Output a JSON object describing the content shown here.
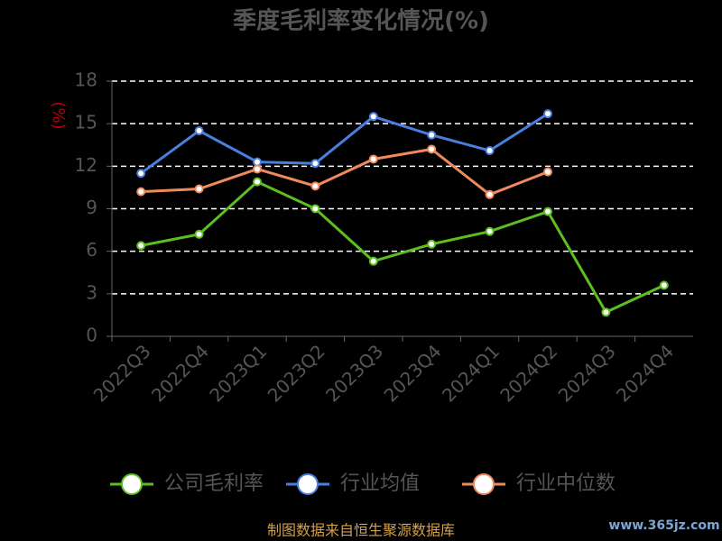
{
  "chart_data": {
    "type": "line",
    "title": "季度毛利率变化情况(%)",
    "y_label": "(%)",
    "categories": [
      "2022Q3",
      "2022Q4",
      "2023Q1",
      "2023Q2",
      "2023Q3",
      "2023Q4",
      "2024Q1",
      "2024Q2",
      "2024Q3",
      "2024Q4"
    ],
    "series": [
      {
        "name": "公司毛利率",
        "color": "#5bbf1f",
        "values": [
          6.4,
          7.2,
          10.9,
          9.0,
          5.3,
          6.5,
          7.4,
          8.8,
          1.7,
          3.6
        ]
      },
      {
        "name": "行业均值",
        "color": "#4a7fe0",
        "values": [
          11.5,
          14.5,
          12.3,
          12.2,
          15.5,
          14.2,
          13.1,
          15.7,
          null,
          null
        ]
      },
      {
        "name": "行业中位数",
        "color": "#f08a5d",
        "values": [
          10.2,
          10.4,
          11.8,
          10.6,
          12.5,
          13.2,
          10.0,
          11.6,
          null,
          null
        ]
      }
    ],
    "ylim": [
      0,
      18
    ],
    "yticks": [
      0,
      3,
      6,
      9,
      12,
      15,
      18
    ],
    "grid": true
  },
  "source": "制图数据来自恒生聚源数据库",
  "watermark": "www.365jz.com"
}
